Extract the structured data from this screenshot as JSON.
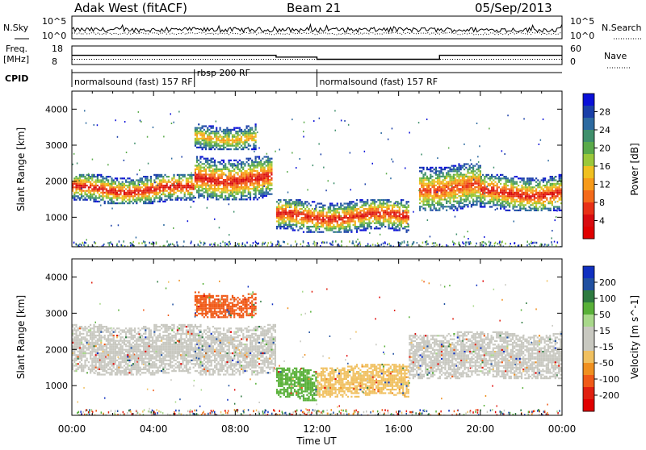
{
  "header": {
    "station": "Adak West (fitACF)",
    "beam": "Beam 21",
    "date": "05/Sep/2013"
  },
  "top_panels": {
    "nsky_label": "N.Sky",
    "nsky_ticks": [
      "10^5",
      "10^0"
    ],
    "nsearch_label": "N.Search",
    "nsearch_ticks": [
      "10^5",
      "10^0"
    ],
    "freq_label": "Freq.",
    "freq_unit": "[MHz]",
    "freq_ticks": [
      "18",
      "8"
    ],
    "nave_label": "Nave",
    "nave_ticks": [
      "60",
      "0"
    ],
    "cpid_label": "CPID",
    "cpid_segments": [
      {
        "label": "normalsound (fast) 157 RF",
        "start_h": 0.0,
        "end_h": 6.0
      },
      {
        "label": "rbsp 200 RF",
        "start_h": 6.0,
        "end_h": 12.0
      },
      {
        "label": "normalsound (fast) 157 RF",
        "start_h": 12.0,
        "end_h": 24.0
      }
    ]
  },
  "x_axis": {
    "title": "Time UT",
    "ticks": [
      "00:00",
      "04:00",
      "08:00",
      "12:00",
      "16:00",
      "20:00",
      "00:00"
    ]
  },
  "power_panel": {
    "ylabel": "Slant Range [km]",
    "yticks": [
      "4000",
      "3000",
      "2000",
      "1000"
    ],
    "colorbar_title": "Power [dB]",
    "colorbar_ticks": [
      "28",
      "24",
      "20",
      "16",
      "12",
      "8",
      "4"
    ],
    "colors": [
      "#0a10d8",
      "#1a3fa8",
      "#2d6aa0",
      "#3f8f6c",
      "#5aaa4a",
      "#9bc83a",
      "#f0c020",
      "#f79a1a",
      "#f46a1a",
      "#e83016",
      "#d80c10",
      "#e00000"
    ]
  },
  "velocity_panel": {
    "ylabel": "Slant Range [km]",
    "yticks": [
      "4000",
      "3000",
      "2000",
      "1000"
    ],
    "colorbar_title": "Velocity [m s^-1]",
    "colorbar_ticks": [
      "200",
      "100",
      "50",
      "15",
      "-15",
      "-50",
      "-100",
      "-200"
    ],
    "colors": [
      "#1030c0",
      "#2050a0",
      "#2e7a40",
      "#58b038",
      "#a8d88a",
      "#c8c8c0",
      "#c8c8c0",
      "#f0c060",
      "#f09020",
      "#f05a18",
      "#e02010",
      "#e00000"
    ]
  },
  "chart_data": {
    "type": "heatmap",
    "title": "Adak West (fitACF)  Beam 21  05/Sep/2013",
    "xlabel": "Time UT",
    "ylabel": "Slant Range [km]",
    "xlim_hours": [
      0,
      24
    ],
    "ylim_km": [
      180,
      4500
    ],
    "nsky_nsearch": {
      "nsky_level": "approx 10^2 to 10^3 (log scale)",
      "nsearch_level": "approx 10^1 to 10^2 (log scale)"
    },
    "frequency_mhz": [
      {
        "start_h": 0.0,
        "end_h": 10.0,
        "value": 13.2
      },
      {
        "start_h": 10.0,
        "end_h": 12.0,
        "value": 12.0
      },
      {
        "start_h": 12.0,
        "end_h": 18.0,
        "value": 10.5
      },
      {
        "start_h": 18.0,
        "end_h": 24.0,
        "value": 13.2
      }
    ],
    "nave": [
      {
        "start_h": 0.0,
        "end_h": 24.0,
        "value": 15
      }
    ],
    "power_echo_regions": [
      {
        "start_h": 0.0,
        "end_h": 6.0,
        "range_km": [
          1400,
          2200
        ],
        "peak_db": 28
      },
      {
        "start_h": 6.0,
        "end_h": 9.8,
        "range_km": [
          1500,
          2700
        ],
        "peak_db": 28
      },
      {
        "start_h": 6.0,
        "end_h": 9.0,
        "range_km": [
          2900,
          3600
        ],
        "peak_db": 20
      },
      {
        "start_h": 10.0,
        "end_h": 16.5,
        "range_km": [
          600,
          1500
        ],
        "peak_db": 28
      },
      {
        "start_h": 17.0,
        "end_h": 20.0,
        "range_km": [
          1200,
          2500
        ],
        "peak_db": 24
      },
      {
        "start_h": 20.0,
        "end_h": 24.0,
        "range_km": [
          1200,
          2200
        ],
        "peak_db": 28
      }
    ],
    "velocity_echo_regions": [
      {
        "start_h": 0.0,
        "end_h": 10.0,
        "range_km": [
          1300,
          2700
        ],
        "velocity_ms": 0
      },
      {
        "start_h": 6.0,
        "end_h": 9.0,
        "range_km": [
          2900,
          3600
        ],
        "velocity_ms": -100
      },
      {
        "start_h": 10.0,
        "end_h": 12.0,
        "range_km": [
          600,
          1500
        ],
        "velocity_ms": 30
      },
      {
        "start_h": 12.0,
        "end_h": 16.5,
        "range_km": [
          700,
          1600
        ],
        "velocity_ms": -30
      },
      {
        "start_h": 16.5,
        "end_h": 24.0,
        "range_km": [
          1200,
          2500
        ],
        "velocity_ms": 0
      }
    ]
  }
}
